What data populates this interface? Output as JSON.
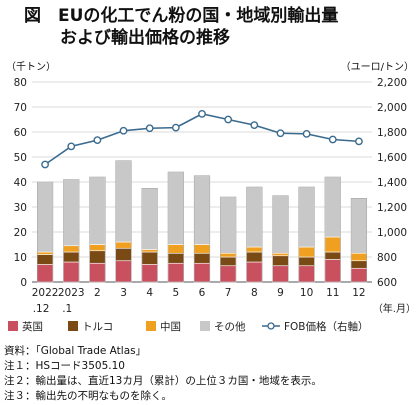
{
  "title": {
    "line1": "図　EUの化工でん粉の国・地域別輸出量",
    "line2": "および輸出価格の推移"
  },
  "axis_units": {
    "left": "（千トン）",
    "right": "（ユーロ/トン）",
    "x": "（年.月）"
  },
  "chart_data": {
    "type": "bar",
    "stacked": true,
    "categories": [
      "2022.12",
      "2023.1",
      "2",
      "3",
      "4",
      "5",
      "6",
      "7",
      "8",
      "9",
      "10",
      "11",
      "12"
    ],
    "x_tick_labels": [
      {
        "main": "2022",
        "sub": ".12"
      },
      {
        "main": "2023",
        "sub": ".1"
      },
      {
        "main": "2",
        "sub": ""
      },
      {
        "main": "3",
        "sub": ""
      },
      {
        "main": "4",
        "sub": ""
      },
      {
        "main": "5",
        "sub": ""
      },
      {
        "main": "6",
        "sub": ""
      },
      {
        "main": "7",
        "sub": ""
      },
      {
        "main": "8",
        "sub": ""
      },
      {
        "main": "9",
        "sub": ""
      },
      {
        "main": "10",
        "sub": ""
      },
      {
        "main": "11",
        "sub": ""
      },
      {
        "main": "12",
        "sub": ""
      }
    ],
    "series": [
      {
        "name": "英国",
        "color": "#c9505f",
        "values": [
          7,
          8,
          7.5,
          8.5,
          7,
          7.5,
          7.5,
          6.5,
          8,
          6.5,
          6.5,
          9,
          5.5
        ]
      },
      {
        "name": "トルコ",
        "color": "#7a4a14",
        "values": [
          4,
          4,
          5,
          5,
          5,
          4,
          4,
          3.5,
          4,
          4,
          3.5,
          3,
          3
        ]
      },
      {
        "name": "中国",
        "color": "#f0a020",
        "values": [
          1,
          2.5,
          2.5,
          2.5,
          1,
          3.5,
          3.5,
          1.5,
          2,
          1,
          4,
          6,
          3
        ]
      },
      {
        "name": "その他",
        "color": "#c8c8c8",
        "values": [
          28,
          26.5,
          27,
          32.5,
          24.5,
          29,
          27.5,
          22.5,
          24,
          23,
          24,
          24,
          22
        ]
      }
    ],
    "line_series": {
      "name": "FOB価格（右軸）",
      "color": "#3a6a8e",
      "axis": "right",
      "values": [
        1540,
        1685,
        1735,
        1810,
        1830,
        1835,
        1945,
        1900,
        1855,
        1790,
        1785,
        1740,
        1725
      ]
    },
    "y_left": {
      "min": 0,
      "max": 80,
      "step": 10,
      "ticks": [
        "0",
        "10",
        "20",
        "30",
        "40",
        "50",
        "60",
        "70",
        "80"
      ]
    },
    "y_right": {
      "min": 600,
      "max": 2200,
      "step": 200,
      "ticks": [
        "600",
        "800",
        "1,000",
        "1,200",
        "1,400",
        "1,600",
        "1,800",
        "2,000",
        "2,200"
      ]
    },
    "grid": true,
    "legend_position": "bottom"
  },
  "legend": [
    "英国",
    "トルコ",
    "中国",
    "その他",
    "FOB価格（右軸）"
  ],
  "notes": [
    "資料：「Global Trade Atlas」",
    "注１：HSコード3505.10",
    "注２：輸出量は、直近13カ月（累計）の上位３カ国・地域を表示。",
    "注３：輸出先の不明なものを除く。"
  ]
}
